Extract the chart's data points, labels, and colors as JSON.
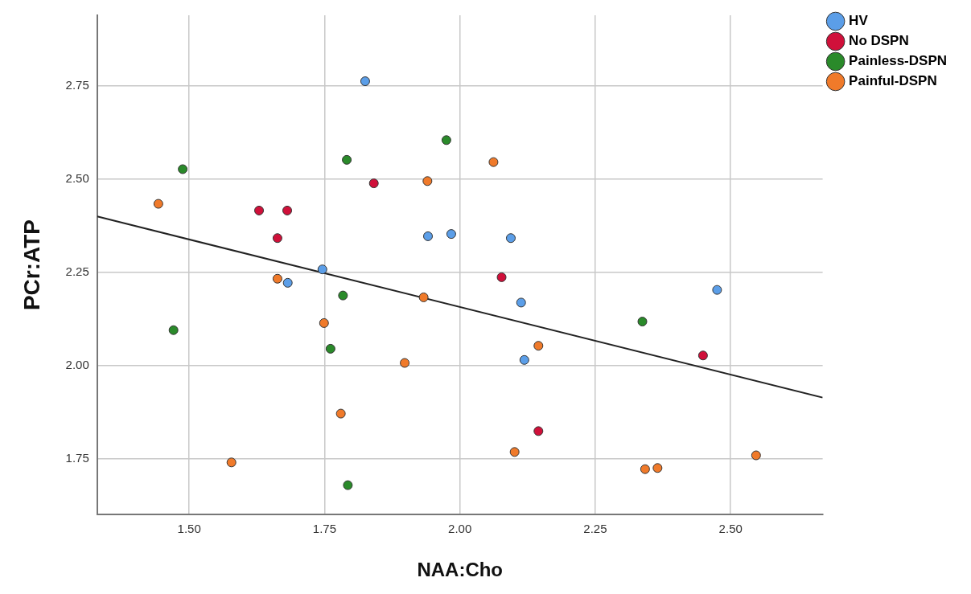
{
  "chart_data": {
    "type": "scatter",
    "xlabel": "NAA:Cho",
    "ylabel": "PCr:ATP",
    "xlim": [
      1.33,
      2.67
    ],
    "ylim": [
      1.6,
      2.94
    ],
    "xticks": [
      {
        "value": 1.5,
        "label": "1.50"
      },
      {
        "value": 1.75,
        "label": "1.75"
      },
      {
        "value": 2,
        "label": "2.00"
      },
      {
        "value": 2.25,
        "label": "2.25"
      },
      {
        "value": 2.5,
        "label": "2.50"
      }
    ],
    "yticks": [
      {
        "value": 1.75,
        "label": "1.75"
      },
      {
        "value": 2,
        "label": "2.00"
      },
      {
        "value": 2.25,
        "label": "2.25"
      },
      {
        "value": 2.5,
        "label": "2.50"
      },
      {
        "value": 2.75,
        "label": "2.75"
      }
    ],
    "grid": true,
    "legend": "top right",
    "marker": "circle",
    "series": [
      {
        "name": "HV",
        "color": "#5b9ee8",
        "x": [
          1.825,
          1.941,
          1.984,
          2.094,
          1.746,
          1.682,
          2.113,
          2.119,
          2.475
        ],
        "values": [
          2.763,
          2.347,
          2.353,
          2.342,
          2.258,
          2.222,
          2.169,
          2.015,
          2.203
        ]
      },
      {
        "name": "No DSPN",
        "color": "#d0103a",
        "x": [
          1.841,
          1.629,
          1.681,
          1.663,
          2.077,
          2.145,
          2.449
        ],
        "values": [
          2.489,
          2.416,
          2.416,
          2.342,
          2.237,
          1.824,
          2.027
        ]
      },
      {
        "name": "Painless-DSPN",
        "color": "#2a8a2a",
        "x": [
          1.975,
          1.791,
          1.488,
          1.784,
          1.471,
          1.761,
          1.793,
          2.337
        ],
        "values": [
          2.605,
          2.552,
          2.527,
          2.188,
          2.095,
          2.045,
          1.679,
          2.118
        ]
      },
      {
        "name": "Painful-DSPN",
        "color": "#f07a2a",
        "x": [
          2.062,
          1.94,
          1.443,
          1.663,
          1.933,
          1.749,
          2.145,
          1.898,
          1.78,
          2.101,
          1.578,
          2.547,
          2.342,
          2.365
        ],
        "values": [
          2.546,
          2.495,
          2.434,
          2.233,
          2.183,
          2.114,
          2.053,
          2.007,
          1.871,
          1.768,
          1.74,
          1.759,
          1.722,
          1.725
        ]
      },
      {
        "type": "line",
        "color": "#222222",
        "x": [
          1.33,
          2.67
        ],
        "values": [
          2.4,
          1.914
        ],
        "line_style": "solid",
        "marker": "none"
      }
    ]
  }
}
